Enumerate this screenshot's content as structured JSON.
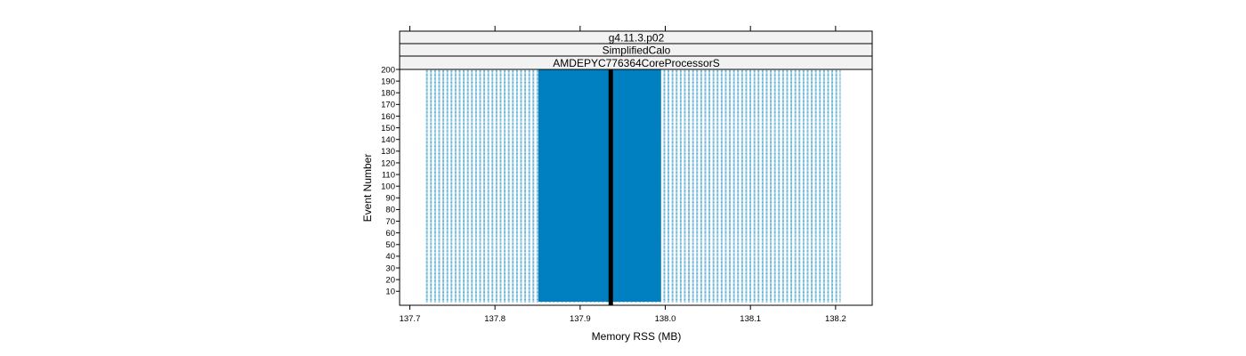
{
  "chart_data": {
    "type": "scatter",
    "strips": [
      "g4.11.3.p02",
      "SimplifiedCalo",
      "AMDEPYC776364CoreProcessorS"
    ],
    "xlabel": "Memory RSS (MB)",
    "ylabel": "Event Number",
    "xlim": [
      137.688,
      138.243
    ],
    "ylim": [
      -2,
      200
    ],
    "x_ticks": [
      137.7,
      137.8,
      137.9,
      138.0,
      138.1,
      138.2
    ],
    "x_tick_labels": [
      "137.7",
      "137.8",
      "137.9",
      "138.0",
      "138.1",
      "138.2"
    ],
    "y_ticks": [
      10,
      20,
      30,
      40,
      50,
      60,
      70,
      80,
      90,
      100,
      110,
      120,
      130,
      140,
      150,
      160,
      170,
      180,
      190,
      200
    ],
    "y_tick_labels": [
      "10",
      "20",
      "30",
      "40",
      "50",
      "60",
      "70",
      "80",
      "90",
      "100",
      "110",
      "120",
      "130",
      "140",
      "150",
      "160",
      "170",
      "180",
      "190",
      "200"
    ],
    "series": [
      {
        "color": "#0080c0",
        "x_min": 137.719,
        "x_max": 138.206,
        "dense_band": [
          137.851,
          137.995
        ],
        "events": [
          1,
          200
        ]
      }
    ],
    "median_line": 137.936,
    "median_color": "#000000",
    "grid": false
  }
}
